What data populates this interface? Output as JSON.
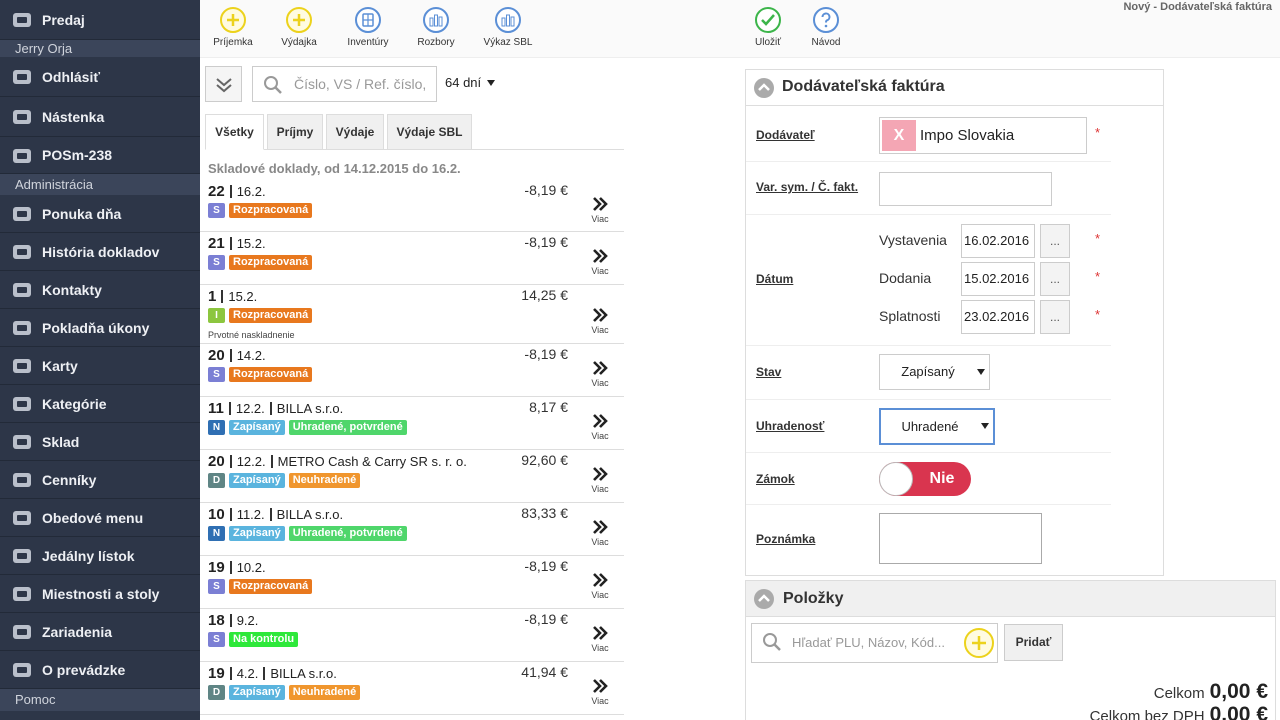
{
  "window_title": "Nový - Dodávateľská faktúra",
  "sidebar": {
    "top": "Predaj",
    "user": "Jerry Orja",
    "user_items": [
      "Odhlásiť",
      "Nástenka",
      "POSm-238"
    ],
    "admin": "Administrácia",
    "admin_items": [
      "Ponuka dňa",
      "História dokladov",
      "Kontakty",
      "Pokladňa úkony",
      "Karty",
      "Kategórie",
      "Sklad",
      "Cenníky",
      "Obedové menu",
      "Jedálny lístok",
      "Miestnosti a stoly",
      "Zariadenia",
      "O prevádzke"
    ],
    "help": "Pomoc"
  },
  "toolbar": {
    "left": [
      "Príjemka",
      "Výdajka",
      "Inventúry",
      "Rozbory",
      "Výkaz SBL"
    ],
    "right": [
      "Uložiť",
      "Návod"
    ]
  },
  "list": {
    "search_placeholder": "Číslo, VS / Ref. číslo,",
    "period": "64 dní",
    "tabs": [
      "Všetky",
      "Príjmy",
      "Výdaje",
      "Výdaje SBL"
    ],
    "heading": "Skladové doklady, od 14.12.2015 do 16.2.",
    "more_label": "Viac",
    "rows": [
      {
        "number": "22",
        "date": "16.2.",
        "amount": "-8,19 €",
        "type": {
          "label": "S",
          "color": "#7b7fd4"
        },
        "statuses": [
          {
            "label": "Rozpracovaná",
            "color": "#e8781e"
          }
        ]
      },
      {
        "number": "21",
        "date": "15.2.",
        "amount": "-8,19 €",
        "type": {
          "label": "S",
          "color": "#7b7fd4"
        },
        "statuses": [
          {
            "label": "Rozpracovaná",
            "color": "#e8781e"
          }
        ]
      },
      {
        "number": "1",
        "date": "15.2.",
        "amount": "14,25 €",
        "type": {
          "label": "I",
          "color": "#8cc63f"
        },
        "statuses": [
          {
            "label": "Rozpracovaná",
            "color": "#e8781e"
          }
        ],
        "note": "Prvotné naskladnenie"
      },
      {
        "number": "20",
        "date": "14.2.",
        "amount": "-8,19 €",
        "type": {
          "label": "S",
          "color": "#7b7fd4"
        },
        "statuses": [
          {
            "label": "Rozpracovaná",
            "color": "#e8781e"
          }
        ]
      },
      {
        "number": "11",
        "date": "12.2.",
        "partner": "BILLA s.r.o.",
        "amount": "8,17 €",
        "type": {
          "label": "N",
          "color": "#2f6fb3"
        },
        "statuses": [
          {
            "label": "Zapísaný",
            "color": "#5ab4de"
          },
          {
            "label": "Uhradené, potvrdené",
            "color": "#4fd66b"
          }
        ]
      },
      {
        "number": "20",
        "date": "12.2.",
        "partner": "METRO Cash & Carry SR s. r. o.",
        "amount": "92,60 €",
        "type": {
          "label": "D",
          "color": "#5f8585"
        },
        "statuses": [
          {
            "label": "Zapísaný",
            "color": "#5ab4de"
          },
          {
            "label": "Neuhradené",
            "color": "#f0962e"
          }
        ]
      },
      {
        "number": "10",
        "date": "11.2.",
        "partner": "BILLA s.r.o.",
        "amount": "83,33 €",
        "type": {
          "label": "N",
          "color": "#2f6fb3"
        },
        "statuses": [
          {
            "label": "Zapísaný",
            "color": "#5ab4de"
          },
          {
            "label": "Uhradené, potvrdené",
            "color": "#4fd66b"
          }
        ]
      },
      {
        "number": "19",
        "date": "10.2.",
        "amount": "-8,19 €",
        "type": {
          "label": "S",
          "color": "#7b7fd4"
        },
        "statuses": [
          {
            "label": "Rozpracovaná",
            "color": "#e8781e"
          }
        ]
      },
      {
        "number": "18",
        "date": "9.2.",
        "amount": "-8,19 €",
        "type": {
          "label": "S",
          "color": "#7b7fd4"
        },
        "statuses": [
          {
            "label": "Na kontrolu",
            "color": "#2ee83a"
          }
        ]
      },
      {
        "number": "19",
        "date": "4.2.",
        "partner": "BILLA s.r.o.",
        "amount": "41,94 €",
        "type": {
          "label": "D",
          "color": "#5f8585"
        },
        "statuses": [
          {
            "label": "Zapísaný",
            "color": "#5ab4de"
          },
          {
            "label": "Neuhradené",
            "color": "#f0962e"
          }
        ]
      }
    ]
  },
  "form": {
    "title": "Dodávateľská faktúra",
    "required_mark": "*",
    "date_button": "...",
    "supplier": {
      "label": "Dodávateľ",
      "value": "Impo Slovakia",
      "clear": "X"
    },
    "var_sym": {
      "label": "Var. sym. / Č. fakt."
    },
    "dates": {
      "label": "Dátum",
      "rows": [
        {
          "label": "Vystavenia",
          "value": "16.02.2016"
        },
        {
          "label": "Dodania",
          "value": "15.02.2016"
        },
        {
          "label": "Splatnosti",
          "value": "23.02.2016"
        }
      ]
    },
    "status": {
      "label": "Stav",
      "value": "Zapísaný"
    },
    "paid": {
      "label": "Uhradenosť",
      "value": "Uhradené"
    },
    "lock": {
      "label": "Zámok",
      "value": "Nie"
    },
    "note": {
      "label": "Poznámka"
    }
  },
  "items": {
    "title": "Položky",
    "search_placeholder": "Hľadať PLU, Názov, Kód...",
    "add": "Pridať",
    "totals": [
      {
        "label": "Celkom",
        "value": "0,00 €"
      },
      {
        "label": "Celkom bez DPH",
        "value": "0,00 €"
      }
    ]
  }
}
